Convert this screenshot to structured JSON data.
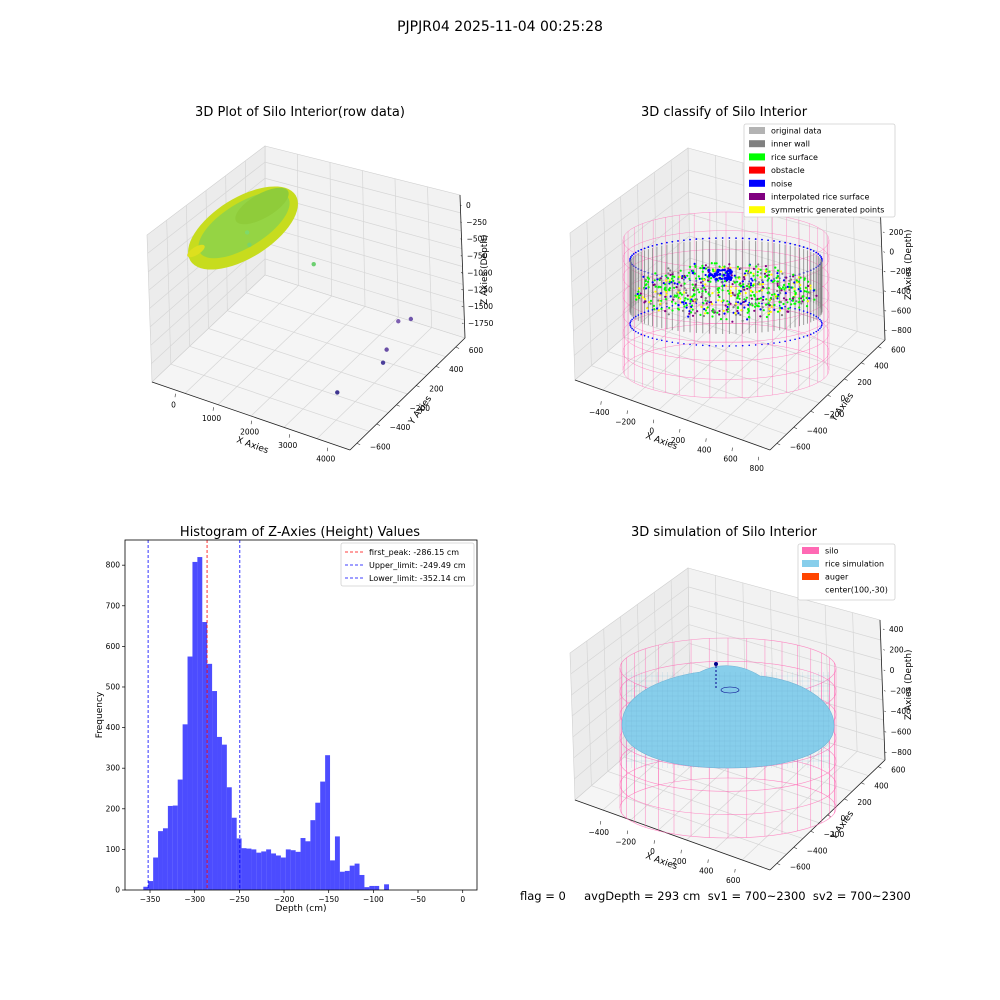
{
  "figure_title": "PJPJR04 2025-11-04 00:25:28",
  "info_line": "flag = 0     avgDepth = 293 cm  sv1 = 700~2300  sv2 = 700~2300",
  "colors": {
    "original_data": "#b3b3b3",
    "inner_wall": "#808080",
    "rice_surface": "#00ff00",
    "obstacle": "#ff0000",
    "noise": "#0000ff",
    "interpolated_rice_surface": "#800080",
    "symmetric_generated_points": "#ffff00",
    "silo": "#ff69b4",
    "rice_simulation": "#87ceeb",
    "auger": "#ff4500",
    "hist_bar": "#0000ff"
  },
  "chart_data": [
    {
      "type": "scatter",
      "title": "3D Plot of Silo Interior(row data)",
      "xlabel": "X Axies",
      "ylabel": "Y Axies",
      "zlabel": "Z Axies (Depth)",
      "x_ticks": [
        "0",
        "1000",
        "2000",
        "3000",
        "4000"
      ],
      "y_ticks": [
        "600",
        "400",
        "200",
        "−200",
        "−400",
        "−600"
      ],
      "z_ticks": [
        "0",
        "−250",
        "−500",
        "−750",
        "−1000",
        "−1250",
        "−1500",
        "−1750"
      ],
      "grid": true,
      "outlier_points": [
        {
          "x": 300,
          "y": 200,
          "z": -750
        },
        {
          "x": 350,
          "y": 200,
          "z": -900
        },
        {
          "x": 1600,
          "y": 300,
          "z": -1000
        },
        {
          "x": 3300,
          "y": 400,
          "z": -1500
        },
        {
          "x": 3400,
          "y": 500,
          "z": -1550
        },
        {
          "x": 3500,
          "y": 100,
          "z": -1700
        },
        {
          "x": 3400,
          "y": 200,
          "z": -1650
        },
        {
          "x": 3200,
          "y": -300,
          "z": -1750
        }
      ]
    },
    {
      "type": "scatter",
      "title": "3D classify of Silo Interior",
      "xlabel": "X Axies",
      "ylabel": "Y Axies",
      "zlabel": "Z Axies (Depth)",
      "x_ticks": [
        "−400",
        "−200",
        "0",
        "200",
        "400",
        "600",
        "800"
      ],
      "y_ticks": [
        "600",
        "400",
        "200",
        "0",
        "−200",
        "−400",
        "−600"
      ],
      "z_ticks": [
        "200",
        "0",
        "−200",
        "−400",
        "−600",
        "−800"
      ],
      "grid": true,
      "legend_position": "top-right",
      "legend": [
        {
          "label": "original data",
          "color": "#b3b3b3"
        },
        {
          "label": "inner wall",
          "color": "#808080"
        },
        {
          "label": "rice surface",
          "color": "#00ff00"
        },
        {
          "label": "obstacle",
          "color": "#ff0000"
        },
        {
          "label": "noise",
          "color": "#0000ff"
        },
        {
          "label": "interpolated rice surface",
          "color": "#800080"
        },
        {
          "label": "symmetric generated points",
          "color": "#ffff00"
        }
      ]
    },
    {
      "type": "bar",
      "title": "Histogram of Z-Axies (Height) Values",
      "xlabel": "Depth (cm)",
      "ylabel": "Frequency",
      "xlim": [
        -378,
        16
      ],
      "ylim": [
        0,
        862
      ],
      "x_ticks": [
        -350,
        -300,
        -250,
        -200,
        -150,
        -100,
        -50,
        0
      ],
      "y_ticks": [
        0,
        100,
        200,
        300,
        400,
        500,
        600,
        700,
        800
      ],
      "bin_width": 5.5,
      "bin_start": -357.5,
      "values": [
        8,
        22,
        80,
        145,
        152,
        207,
        208,
        272,
        408,
        575,
        808,
        820,
        660,
        557,
        490,
        377,
        358,
        253,
        178,
        127,
        103,
        102,
        100,
        92,
        95,
        100,
        90,
        85,
        80,
        100,
        98,
        94,
        128,
        120,
        172,
        215,
        267,
        332,
        73,
        132,
        45,
        47,
        60,
        65,
        37,
        7,
        10,
        10,
        0,
        14
      ],
      "reference_lines": [
        {
          "label": "first_peak: -286.15 cm",
          "value": -286.15,
          "color": "#ff0000"
        },
        {
          "label": "Upper_limit: -249.49 cm",
          "value": -249.49,
          "color": "#0000ff"
        },
        {
          "label": "Lower_limit: -352.14 cm",
          "value": -352.14,
          "color": "#0000ff"
        }
      ],
      "legend_position": "top-right"
    },
    {
      "type": "surface",
      "title": "3D simulation of Silo Interior",
      "xlabel": "X Axies",
      "ylabel": "Y Axies",
      "zlabel": "Z Axies (Depth)",
      "x_ticks": [
        "−400",
        "−200",
        "0",
        "200",
        "400",
        "600"
      ],
      "y_ticks": [
        "600",
        "400",
        "200",
        "0",
        "−200",
        "−400",
        "−600"
      ],
      "z_ticks": [
        "400",
        "200",
        "0",
        "−200",
        "−400",
        "−600",
        "−800"
      ],
      "grid": true,
      "legend_position": "top-right",
      "legend": [
        {
          "label": "silo",
          "color": "#ff69b4"
        },
        {
          "label": "rice simulation",
          "color": "#87ceeb"
        },
        {
          "label": "auger",
          "color": "#ff4500"
        },
        {
          "label": "center(100,-30)",
          "color": ""
        }
      ]
    }
  ]
}
